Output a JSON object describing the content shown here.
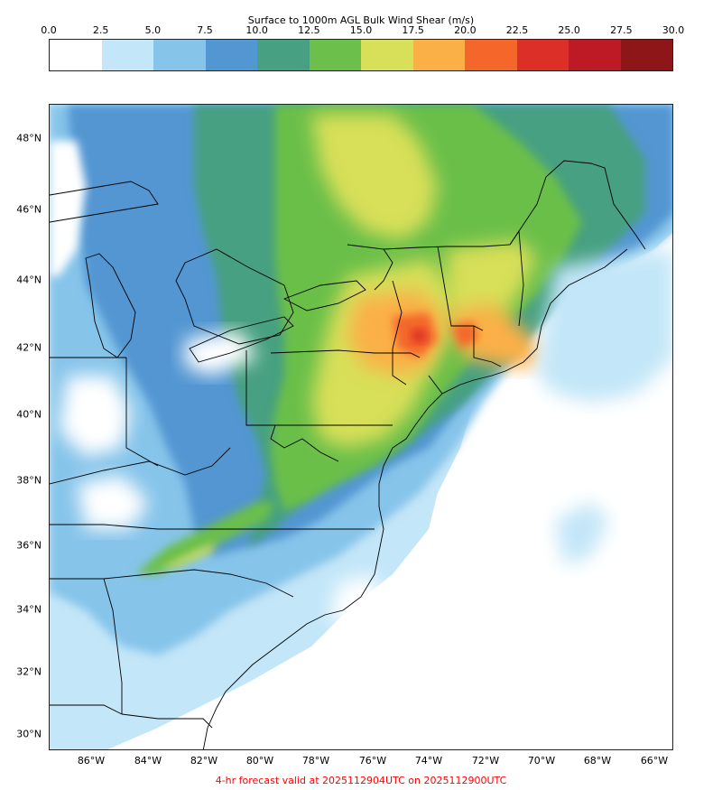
{
  "colorbar": {
    "title": "Surface to 1000m AGL Bulk Wind Shear (m/s)",
    "ticks": [
      "0.0",
      "2.5",
      "5.0",
      "7.5",
      "10.0",
      "12.5",
      "15.0",
      "17.5",
      "20.0",
      "22.5",
      "25.0",
      "27.5",
      "30.0"
    ],
    "colors": [
      "#ffffff",
      "#c3e6f8",
      "#86c4ea",
      "#5296d2",
      "#46a081",
      "#6bbf4a",
      "#d8df58",
      "#fbb047",
      "#f4662a",
      "#dc2f27",
      "#bd1a25",
      "#8e1518"
    ]
  },
  "map": {
    "lat_labels": [
      "48°N",
      "46°N",
      "44°N",
      "42°N",
      "40°N",
      "38°N",
      "36°N",
      "34°N",
      "32°N",
      "30°N"
    ],
    "lon_labels": [
      "86°W",
      "84°W",
      "82°W",
      "80°W",
      "78°W",
      "76°W",
      "74°W",
      "72°W",
      "70°W",
      "68°W",
      "66°W"
    ]
  },
  "footer": "4-hr forecast valid at 2025112904UTC on 2025112900UTC"
}
